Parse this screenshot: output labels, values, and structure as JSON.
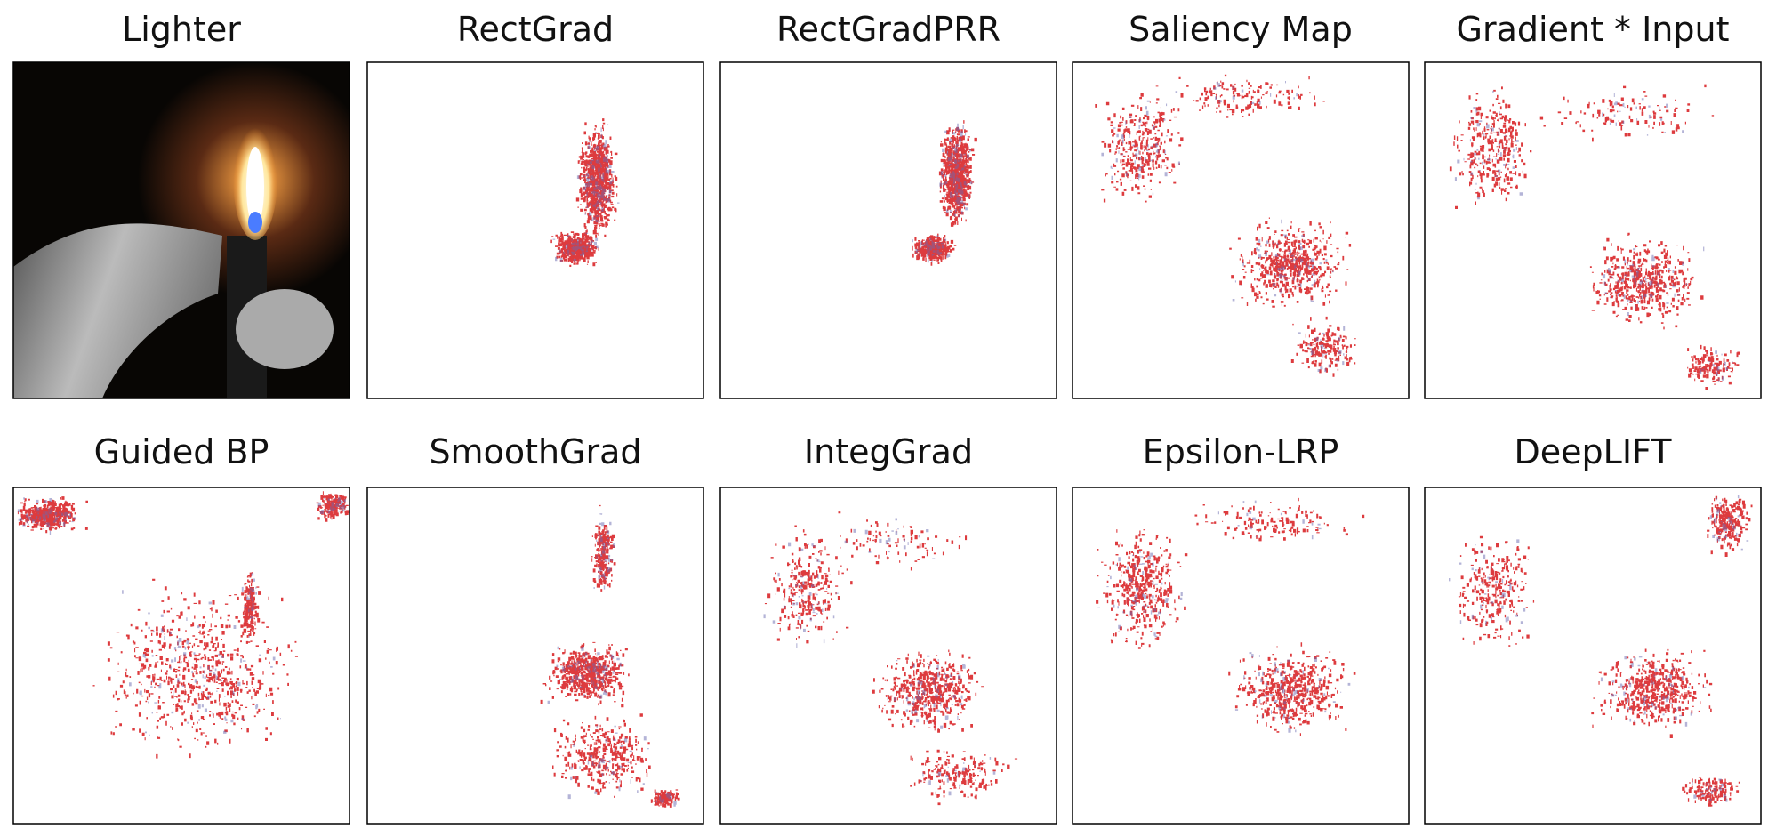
{
  "figure": {
    "panels": [
      {
        "title": "Lighter"
      },
      {
        "title": "RectGrad"
      },
      {
        "title": "RectGradPRR"
      },
      {
        "title": "Saliency Map"
      },
      {
        "title": "Gradient * Input"
      },
      {
        "title": "Guided BP"
      },
      {
        "title": "SmoothGrad"
      },
      {
        "title": "IntegGrad"
      },
      {
        "title": "Epsilon-LRP"
      },
      {
        "title": "DeepLIFT"
      }
    ]
  }
}
